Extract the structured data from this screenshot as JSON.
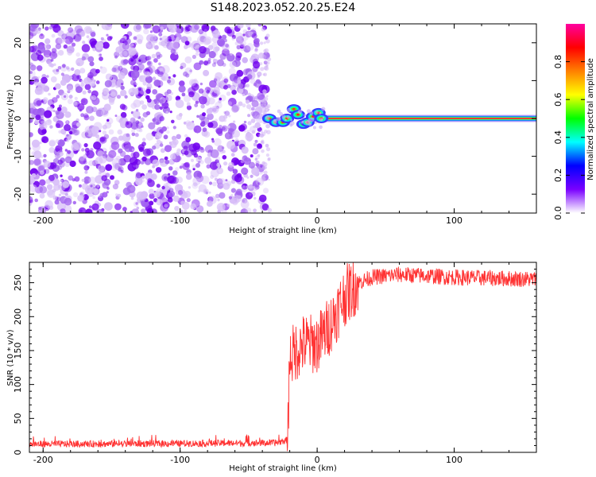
{
  "title": "S148.2023.052.20.25.E24",
  "chart_data": [
    {
      "type": "heatmap",
      "xlabel": "Height of straight line (km)",
      "ylabel": "Frequency (Hz)",
      "xlim": [
        -210,
        160
      ],
      "ylim": [
        -25,
        25
      ],
      "x_ticks": [
        -200,
        -100,
        0,
        100
      ],
      "y_ticks": [
        -20,
        -10,
        0,
        10,
        20
      ],
      "noise_region_x": [
        -210,
        -37
      ],
      "transition_region_x": [
        -37,
        5
      ],
      "signal_band_x": [
        5,
        160
      ],
      "signal_band_freq_hz": 0,
      "colorbar": {
        "label": "Normalized spectral amplitude",
        "ticks": [
          0.0,
          0.2,
          0.4,
          0.6,
          0.8
        ],
        "range": [
          0,
          1
        ],
        "colors": [
          "#ffffff",
          "#7a00ff",
          "#0000ff",
          "#00ffff",
          "#00ff00",
          "#ffff00",
          "#ff8000",
          "#ff0000",
          "#ff00a0"
        ]
      }
    },
    {
      "type": "line",
      "xlabel": "Height of straight line (km)",
      "ylabel": "SNR (10 * v/v)",
      "xlim": [
        -210,
        160
      ],
      "ylim": [
        0,
        280
      ],
      "x_ticks": [
        -200,
        -100,
        0,
        100
      ],
      "y_ticks": [
        0,
        50,
        100,
        150,
        200,
        250
      ],
      "line_color": "#ff3333",
      "series": [
        {
          "x": [
            -210,
            -100,
            -30,
            -22,
            -21,
            -20,
            -10,
            0,
            10,
            20,
            30,
            40,
            60,
            100,
            160
          ],
          "values": [
            12,
            13,
            14,
            18,
            60,
            140,
            160,
            160,
            190,
            230,
            250,
            258,
            262,
            258,
            255
          ]
        }
      ]
    }
  ]
}
